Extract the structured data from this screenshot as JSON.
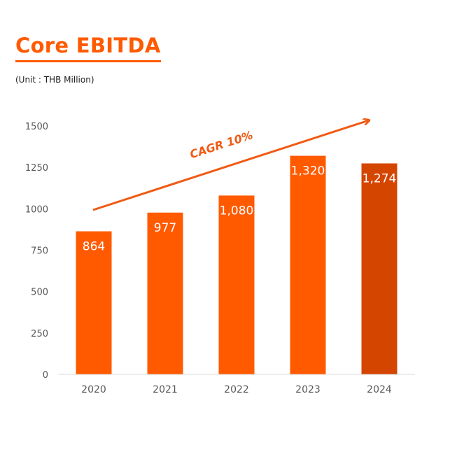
{
  "chart_data": {
    "type": "bar",
    "title": "Core EBITDA",
    "subtitle": "(Unit : THB Million)",
    "categories": [
      "2020",
      "2021",
      "2022",
      "2023",
      "2024"
    ],
    "values": [
      864,
      977,
      1080,
      1320,
      1274
    ],
    "data_labels": [
      "864",
      "977",
      "1,080",
      "1,320",
      "1,274"
    ],
    "ylim": [
      0,
      1500
    ],
    "yticks": [
      0,
      250,
      500,
      750,
      1000,
      1250,
      1500
    ],
    "grid": false,
    "xlabel": "",
    "ylabel": "",
    "annotation": "CAGR 10%",
    "colors": {
      "bar": "#FF5A00",
      "bar_highlight": "#D44500",
      "title": "#FF5A00",
      "arrow": "#F05A14",
      "axis_text": "#595959",
      "data_label": "#FFFFFF"
    },
    "highlight_index": 4
  }
}
